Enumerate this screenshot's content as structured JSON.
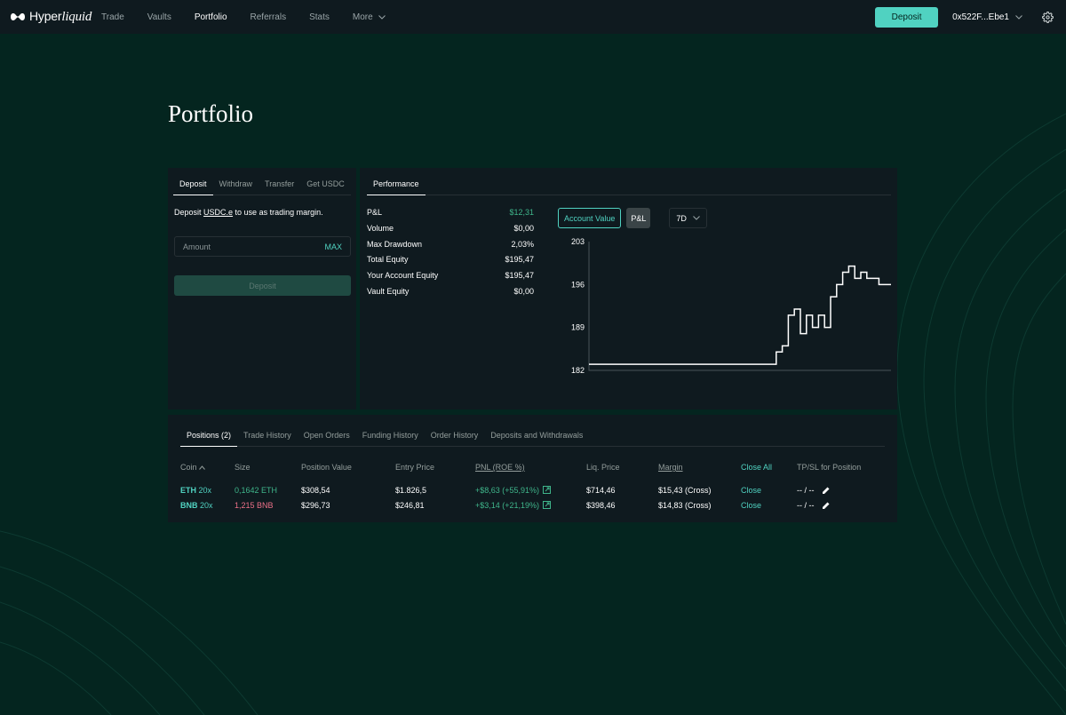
{
  "nav": {
    "logo_text": "Hyper",
    "logo_text_italic": "liquid",
    "links": [
      {
        "label": "Trade",
        "active": false
      },
      {
        "label": "Vaults",
        "active": false
      },
      {
        "label": "Portfolio",
        "active": true
      },
      {
        "label": "Referrals",
        "active": false
      },
      {
        "label": "Stats",
        "active": false
      }
    ],
    "more_label": "More",
    "deposit_label": "Deposit",
    "address": "0x522F...Ebe1"
  },
  "page_title": "Portfolio",
  "transfer_panel": {
    "tabs": [
      "Deposit",
      "Withdraw",
      "Transfer",
      "Get USDC"
    ],
    "active_tab": "Deposit",
    "desc_prefix": "Deposit ",
    "desc_token": "USDC.e",
    "desc_suffix": " to use as trading margin.",
    "amount_placeholder": "Amount",
    "max_label": "MAX",
    "deposit_button": "Deposit"
  },
  "performance": {
    "tab": "Performance",
    "stats": [
      {
        "label": "P&L",
        "value": "$12,31",
        "green": true
      },
      {
        "label": "Volume",
        "value": "$0,00",
        "green": false
      },
      {
        "label": "Max Drawdown",
        "value": "2,03%",
        "green": false
      },
      {
        "label": "Total Equity",
        "value": "$195,47",
        "green": false
      },
      {
        "label": "Your Account Equity",
        "value": "$195,47",
        "green": false
      },
      {
        "label": "Vault Equity",
        "value": "$0,00",
        "green": false
      }
    ],
    "account_value_button": "Account Value",
    "pnl_button": "P&L",
    "range": "7D"
  },
  "chart_data": {
    "type": "line",
    "ylim": [
      182,
      203
    ],
    "ticks": [
      "203",
      "196",
      "189",
      "182"
    ],
    "x": [
      0,
      0.6,
      0.62,
      0.64,
      0.66,
      0.68,
      0.7,
      0.72,
      0.74,
      0.76,
      0.78,
      0.8,
      0.82,
      0.84,
      0.86,
      0.88,
      0.9,
      0.92,
      0.94,
      0.96,
      0.98,
      1.0
    ],
    "values": [
      183.0,
      183.0,
      185.0,
      186.0,
      191.0,
      192.0,
      188.0,
      191.0,
      189.0,
      191.0,
      189.0,
      194.0,
      196.0,
      198.0,
      199.0,
      197.0,
      198.0,
      197.0,
      197.0,
      196.0,
      196.0,
      196.0
    ],
    "line_color": "#ffffff"
  },
  "bottom": {
    "tabs": [
      "Positions (2)",
      "Trade History",
      "Open Orders",
      "Funding History",
      "Order History",
      "Deposits and Withdrawals"
    ],
    "active_tab": "Positions (2)",
    "headers": {
      "coin": "Coin",
      "size": "Size",
      "position_value": "Position Value",
      "entry_price": "Entry Price",
      "pnl": "PNL (ROE %)",
      "liq_price": "Liq. Price",
      "margin": "Margin",
      "close_all": "Close All",
      "tpsl": "TP/SL for Position"
    },
    "rows": [
      {
        "coin": "ETH",
        "lev": "20x",
        "size": "0,1642 ETH",
        "size_side": "long",
        "position_value": "$308,54",
        "entry_price": "$1.826,5",
        "pnl": "+$8,63 (+55,91%)",
        "liq_price": "$714,46",
        "margin": "$15,43 (Cross)",
        "close": "Close",
        "tpsl": "-- / --"
      },
      {
        "coin": "BNB",
        "lev": "20x",
        "size": "1,215 BNB",
        "size_side": "short",
        "position_value": "$296,73",
        "entry_price": "$246,81",
        "pnl": "+$3,14 (+21,19%)",
        "liq_price": "$398,46",
        "margin": "$14,83 (Cross)",
        "close": "Close",
        "tpsl": "-- / --"
      }
    ]
  },
  "colors": {
    "background": "#04251f",
    "panel": "#0f1a1f",
    "accent": "#50d2c1",
    "positive": "#3fb68b",
    "negative": "#ed7088"
  }
}
